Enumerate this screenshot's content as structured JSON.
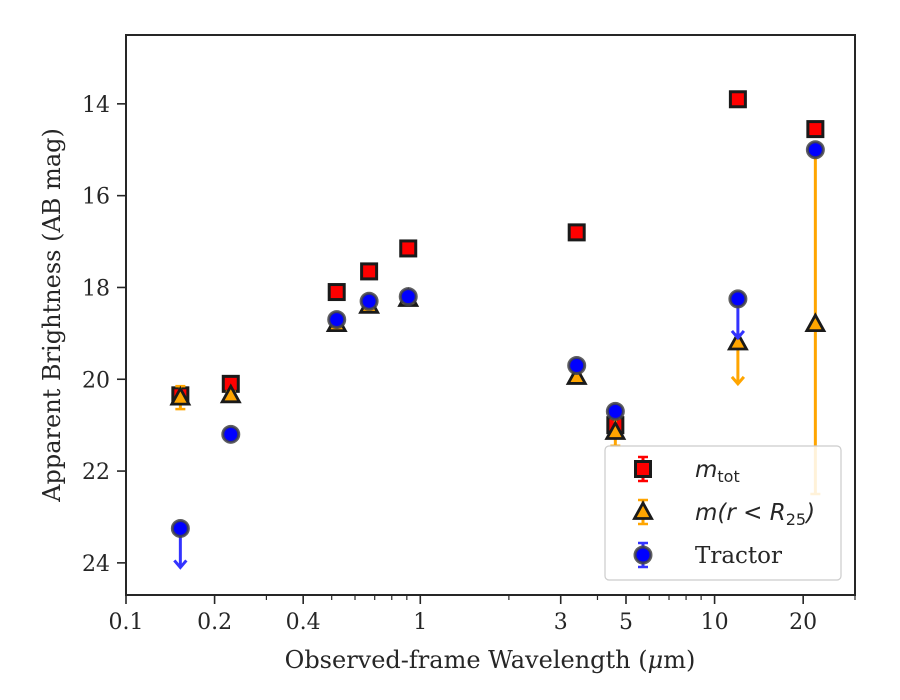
{
  "chart_data": {
    "type": "scatter",
    "xlabel": "Observed-frame Wavelength (",
    "xlabel_mu": "μ",
    "xlabel_end": "m)",
    "ylabel": "Apparent Brightness (AB mag)",
    "xscale": "log",
    "xlim": [
      0.1,
      30
    ],
    "ylim": [
      24.7,
      12.5
    ],
    "y_inverted": true,
    "grid": false,
    "legend_placement": "lower-right",
    "x_ticks": [
      {
        "value": 0.1,
        "label": "0.1"
      },
      {
        "value": 0.2,
        "label": "0.2"
      },
      {
        "value": 0.4,
        "label": "0.4"
      },
      {
        "value": 1,
        "label": "1"
      },
      {
        "value": 3,
        "label": "3"
      },
      {
        "value": 5,
        "label": "5"
      },
      {
        "value": 10,
        "label": "10"
      },
      {
        "value": 20,
        "label": "20"
      }
    ],
    "x_minor_ticks": [
      0.3,
      0.5,
      0.6,
      0.7,
      0.8,
      0.9,
      2,
      4,
      6,
      7,
      8,
      9,
      30
    ],
    "y_ticks": [
      {
        "value": 14,
        "label": "14"
      },
      {
        "value": 16,
        "label": "16"
      },
      {
        "value": 18,
        "label": "18"
      },
      {
        "value": 20,
        "label": "20"
      },
      {
        "value": 22,
        "label": "22"
      },
      {
        "value": 24,
        "label": "24"
      }
    ],
    "series": [
      {
        "key": "mtot",
        "legend_main": "m",
        "legend_sub": "tot",
        "marker": "square",
        "color": "#ff0000",
        "edge": "#1a1a1a",
        "errcolor": "#ff0000",
        "points": [
          {
            "x": 0.153,
            "y": 20.35,
            "err": 0.12
          },
          {
            "x": 0.227,
            "y": 20.1,
            "err": 0.08
          },
          {
            "x": 0.52,
            "y": 18.1,
            "err": 0.04
          },
          {
            "x": 0.67,
            "y": 17.65,
            "err": 0.04
          },
          {
            "x": 0.91,
            "y": 17.15,
            "err": 0.04
          },
          {
            "x": 3.4,
            "y": 16.8,
            "err": 0.04
          },
          {
            "x": 4.6,
            "y": 21.0,
            "err": 0.12
          },
          {
            "x": 12.0,
            "y": 13.9,
            "err": 0.04
          },
          {
            "x": 22.0,
            "y": 14.55,
            "err": 0.05
          }
        ]
      },
      {
        "key": "mr25",
        "legend_main": "m(r < R",
        "legend_sub": "25",
        "legend_end": ")",
        "marker": "triangle",
        "color": "#ffa500",
        "edge": "#1a1a1a",
        "errcolor": "#ffa500",
        "points": [
          {
            "x": 0.153,
            "y": 20.4,
            "err": 0.25
          },
          {
            "x": 0.227,
            "y": 20.35,
            "err": 0.08
          },
          {
            "x": 0.52,
            "y": 18.8,
            "err": 0.05
          },
          {
            "x": 0.67,
            "y": 18.4,
            "err": 0.05
          },
          {
            "x": 0.91,
            "y": 18.25,
            "err": 0.05
          },
          {
            "x": 3.4,
            "y": 19.95,
            "err": 0.08
          },
          {
            "x": 4.6,
            "y": 21.15,
            "err": 0.3
          },
          {
            "x": 12.0,
            "y": 19.2,
            "err": 0,
            "upper_limit_to": 20.1
          },
          {
            "x": 22.0,
            "y": 18.8,
            "err_low": 3.7,
            "err_high": 3.7
          }
        ]
      },
      {
        "key": "tractor",
        "legend_main": "Tractor",
        "marker": "circle",
        "color": "#0000ff",
        "edge": "#444444",
        "errcolor": "#3333ff",
        "points": [
          {
            "x": 0.153,
            "y": 23.25,
            "err": 0,
            "upper_limit_to": 24.1
          },
          {
            "x": 0.227,
            "y": 21.2,
            "err": 0.05
          },
          {
            "x": 0.52,
            "y": 18.7,
            "err": 0.05
          },
          {
            "x": 0.67,
            "y": 18.3,
            "err": 0.05
          },
          {
            "x": 0.91,
            "y": 18.2,
            "err": 0.05
          },
          {
            "x": 3.4,
            "y": 19.7,
            "err": 0.05
          },
          {
            "x": 4.6,
            "y": 20.7,
            "err": 0.08
          },
          {
            "x": 12.0,
            "y": 18.25,
            "err": 0,
            "upper_limit_to": 19.1
          },
          {
            "x": 22.0,
            "y": 15.0,
            "err": 0.05
          }
        ]
      }
    ]
  }
}
